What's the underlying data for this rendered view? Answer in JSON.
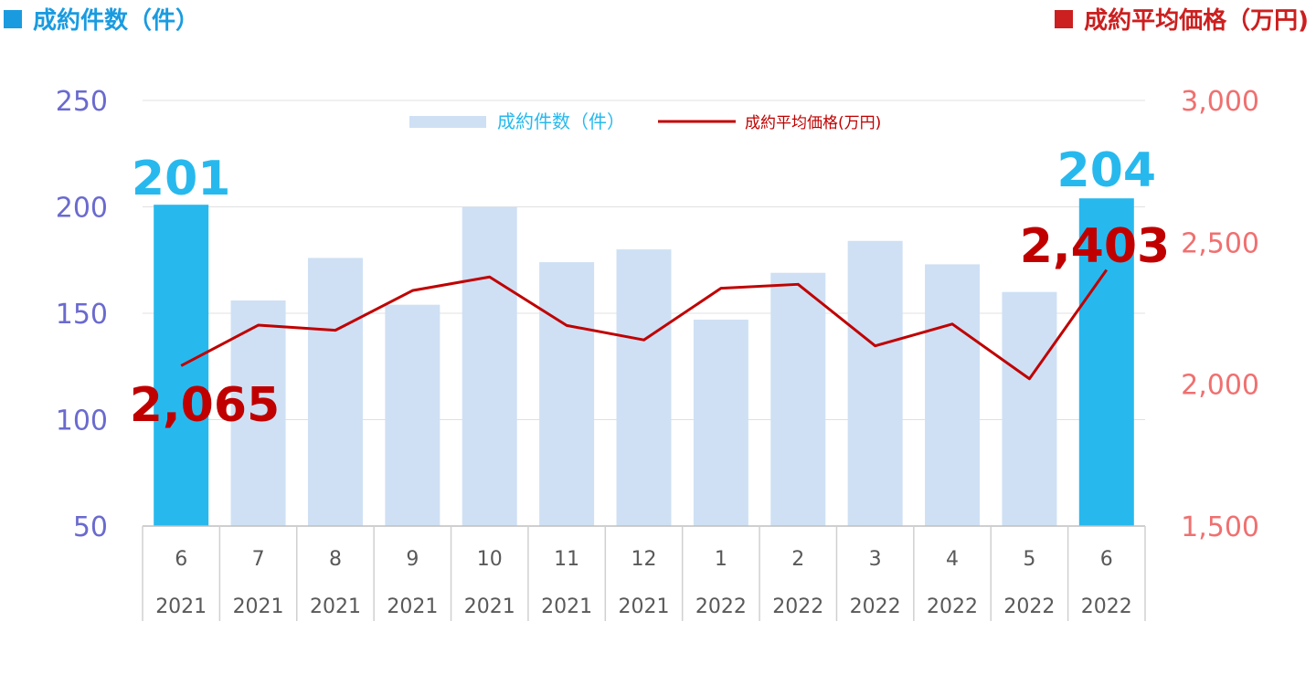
{
  "header": {
    "left_title": "成約件数（件）",
    "right_title": "成約平均価格（万円)"
  },
  "colors": {
    "bar": "#cfe0f4",
    "bar_highlight": "#27b9ee",
    "line": "#c00000",
    "left_axis": "#6a6acf",
    "right_axis": "#f07070",
    "left_header": "#1a9be0",
    "right_header": "#cc1f1f"
  },
  "chart_data": {
    "type": "bar",
    "categories": [
      "6",
      "7",
      "8",
      "9",
      "10",
      "11",
      "12",
      "1",
      "2",
      "3",
      "4",
      "5",
      "6"
    ],
    "category_years": [
      "2021",
      "2021",
      "2021",
      "2021",
      "2021",
      "2021",
      "2021",
      "2022",
      "2022",
      "2022",
      "2022",
      "2022",
      "2022"
    ],
    "series": [
      {
        "name": "成約件数（件）",
        "type": "bar",
        "axis": "left",
        "values": [
          201,
          156,
          176,
          154,
          200,
          174,
          180,
          147,
          169,
          184,
          173,
          160,
          204
        ]
      },
      {
        "name": "成約平均価格(万円)",
        "type": "line",
        "axis": "right",
        "values": [
          2065,
          2208,
          2190,
          2330,
          2378,
          2207,
          2156,
          2338,
          2352,
          2135,
          2212,
          2019,
          2403
        ]
      }
    ],
    "highlighted_indices": [
      0,
      12
    ],
    "left_axis": {
      "ylim": [
        50,
        250
      ],
      "ticks": [
        "50",
        "100",
        "150",
        "200",
        "250"
      ]
    },
    "right_axis": {
      "ylim": [
        1500,
        3000
      ],
      "ticks": [
        "1,500",
        "2,000",
        "2,500",
        "3,000"
      ]
    },
    "annotations": {
      "bar_first": "201",
      "bar_last": "204",
      "line_first": "2,065",
      "line_last": "2,403"
    },
    "legend_position": "top-center",
    "grid": true
  }
}
